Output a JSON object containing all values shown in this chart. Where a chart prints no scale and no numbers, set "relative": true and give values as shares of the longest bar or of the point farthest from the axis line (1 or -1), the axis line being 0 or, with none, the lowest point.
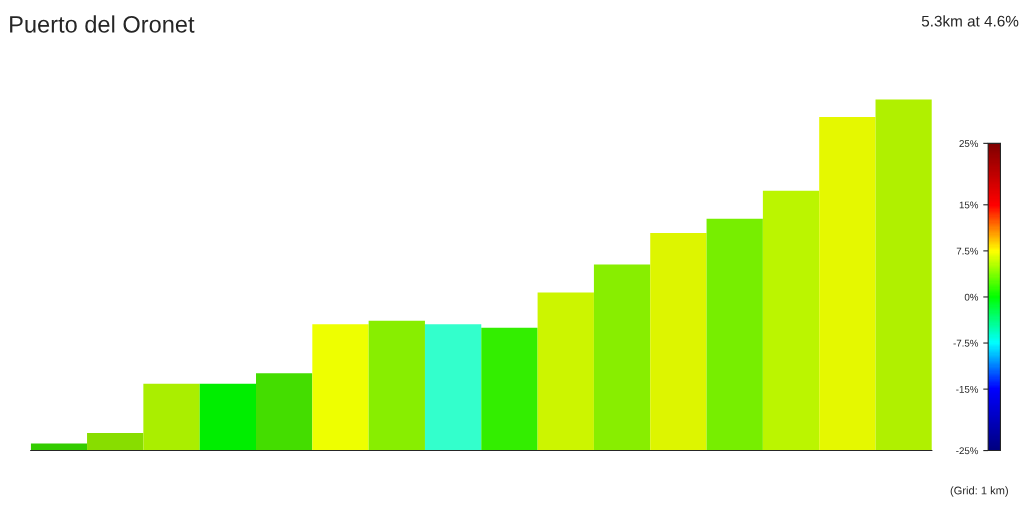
{
  "chart_data": {
    "type": "bar",
    "title": "Puerto del Oronet",
    "relative": true,
    "categories": [
      null,
      null,
      null,
      null,
      null,
      null,
      null,
      null,
      null,
      null,
      null,
      null,
      null,
      null,
      null,
      null
    ],
    "values": [
      0.02,
      0.05,
      0.19,
      0.19,
      0.22,
      0.36,
      0.37,
      0.36,
      0.35,
      0.45,
      0.53,
      0.62,
      0.66,
      0.74,
      0.95,
      1
    ],
    "colors": [
      "#33cc00",
      "#88dd00",
      "#aaee00",
      "#00ee00",
      "#44dd00",
      "#eeff00",
      "#88ee00",
      "#33ffcc",
      "#33ee00",
      "#ccf500",
      "#88ee00",
      "#ddf500",
      "#77ee00",
      "#bbf500",
      "#e5f800",
      "#b0f000"
    ],
    "clim": [
      -25,
      25
    ],
    "cticks": [
      {
        "value": 25,
        "label": "25%"
      },
      {
        "value": 15,
        "label": "15%"
      },
      {
        "value": 7.5,
        "label": "7.5%"
      },
      {
        "value": 0,
        "label": "0%"
      },
      {
        "value": -7.5,
        "label": "-7.5%"
      },
      {
        "value": -15,
        "label": "-15%"
      },
      {
        "value": -25,
        "label": "-25%"
      }
    ],
    "annotations": [
      "5.3km at 4.6%",
      "(Grid: 1 km)"
    ]
  }
}
